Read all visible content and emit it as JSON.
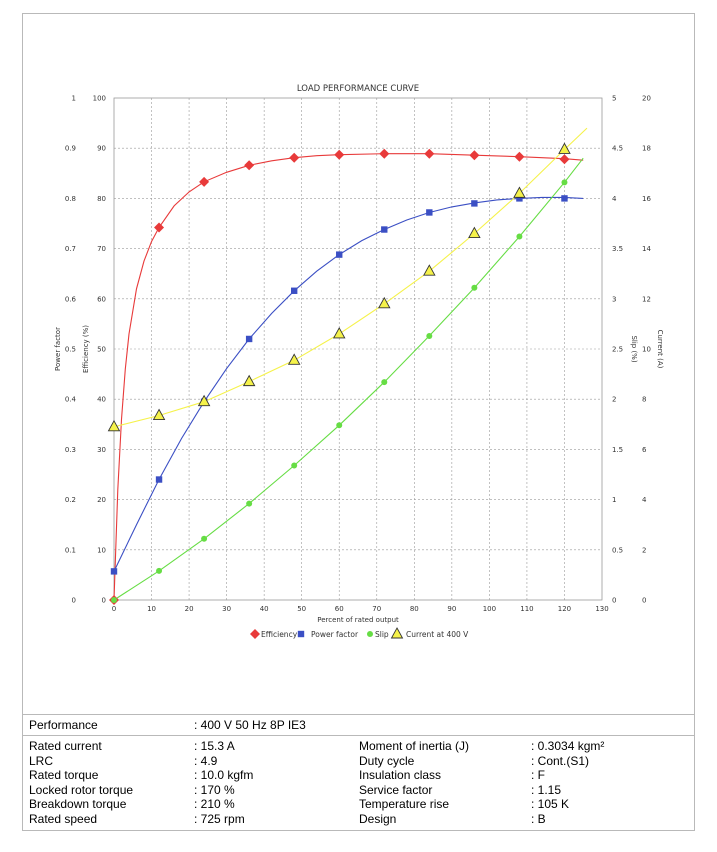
{
  "chart_data": {
    "type": "line",
    "title": "LOAD PERFORMANCE CURVE",
    "xlabel": "Percent of rated output",
    "xlim": [
      0,
      130
    ],
    "x_ticks": [
      "0",
      "10",
      "20",
      "30",
      "40",
      "50",
      "60",
      "70",
      "80",
      "90",
      "100",
      "110",
      "120",
      "130"
    ],
    "axes": [
      {
        "key": "pf",
        "label": "Power factor",
        "side": "left",
        "min": 0,
        "max": 1,
        "ticks": [
          "0",
          "0.1",
          "0.2",
          "0.3",
          "0.4",
          "0.5",
          "0.6",
          "0.7",
          "0.8",
          "0.9",
          "1"
        ]
      },
      {
        "key": "eff",
        "label": "Efficiency (%)",
        "side": "left",
        "min": 0,
        "max": 100,
        "ticks": [
          "0",
          "10",
          "20",
          "30",
          "40",
          "50",
          "60",
          "70",
          "80",
          "90",
          "100"
        ]
      },
      {
        "key": "slip",
        "label": "Slip (%)",
        "side": "right",
        "min": 0,
        "max": 5,
        "ticks": [
          "0",
          "0.5",
          "1",
          "1.5",
          "2",
          "2.5",
          "3",
          "3.5",
          "4",
          "4.5",
          "5"
        ]
      },
      {
        "key": "cur",
        "label": "Current (A)",
        "side": "right",
        "min": 0,
        "max": 20,
        "ticks": [
          "0",
          "2",
          "4",
          "6",
          "8",
          "10",
          "12",
          "14",
          "16",
          "18",
          "20"
        ]
      }
    ],
    "grid": true,
    "legend_position": "bottom",
    "series": [
      {
        "name": "Efficiency",
        "axis": "eff",
        "marker": "diamond",
        "color": "#e83a3a",
        "points": [
          [
            0,
            0
          ],
          [
            12,
            74.2
          ],
          [
            24,
            83.3
          ],
          [
            36,
            86.6
          ],
          [
            48,
            88.1
          ],
          [
            60,
            88.7
          ],
          [
            72,
            88.9
          ],
          [
            84,
            88.9
          ],
          [
            96,
            88.6
          ],
          [
            108,
            88.3
          ],
          [
            120,
            87.8
          ]
        ],
        "curve": [
          [
            0,
            0
          ],
          [
            1,
            22
          ],
          [
            2,
            36
          ],
          [
            3,
            46
          ],
          [
            4,
            53
          ],
          [
            6,
            62
          ],
          [
            8,
            67.5
          ],
          [
            10,
            71.4
          ],
          [
            12,
            74.2
          ],
          [
            16,
            78.5
          ],
          [
            20,
            81.3
          ],
          [
            24,
            83.3
          ],
          [
            30,
            85.2
          ],
          [
            36,
            86.6
          ],
          [
            42,
            87.5
          ],
          [
            48,
            88.1
          ],
          [
            54,
            88.5
          ],
          [
            60,
            88.7
          ],
          [
            72,
            88.9
          ],
          [
            84,
            88.9
          ],
          [
            96,
            88.6
          ],
          [
            108,
            88.3
          ],
          [
            120,
            87.9
          ],
          [
            125,
            87.6
          ]
        ]
      },
      {
        "name": "Power factor",
        "axis": "pf",
        "marker": "square",
        "color": "#3b4fc4",
        "points": [
          [
            0,
            0.057
          ],
          [
            12,
            0.24
          ],
          [
            24,
            0.395
          ],
          [
            36,
            0.52
          ],
          [
            48,
            0.616
          ],
          [
            60,
            0.688
          ],
          [
            72,
            0.738
          ],
          [
            84,
            0.772
          ],
          [
            96,
            0.79
          ],
          [
            108,
            0.8
          ],
          [
            120,
            0.8
          ]
        ],
        "curve": [
          [
            0,
            0.057
          ],
          [
            6,
            0.15
          ],
          [
            12,
            0.24
          ],
          [
            18,
            0.322
          ],
          [
            24,
            0.395
          ],
          [
            30,
            0.461
          ],
          [
            36,
            0.52
          ],
          [
            42,
            0.571
          ],
          [
            48,
            0.616
          ],
          [
            54,
            0.655
          ],
          [
            60,
            0.688
          ],
          [
            66,
            0.716
          ],
          [
            72,
            0.738
          ],
          [
            78,
            0.757
          ],
          [
            84,
            0.772
          ],
          [
            90,
            0.783
          ],
          [
            96,
            0.791
          ],
          [
            102,
            0.797
          ],
          [
            108,
            0.8
          ],
          [
            114,
            0.802
          ],
          [
            120,
            0.802
          ],
          [
            125,
            0.8
          ]
        ]
      },
      {
        "name": "Slip",
        "axis": "slip",
        "marker": "circle",
        "color": "#66dd44",
        "points": [
          [
            0,
            0
          ],
          [
            12,
            0.29
          ],
          [
            24,
            0.61
          ],
          [
            36,
            0.96
          ],
          [
            48,
            1.34
          ],
          [
            60,
            1.74
          ],
          [
            72,
            2.17
          ],
          [
            84,
            2.63
          ],
          [
            96,
            3.11
          ],
          [
            108,
            3.62
          ],
          [
            120,
            4.16
          ]
        ],
        "curve": [
          [
            0,
            0
          ],
          [
            12,
            0.29
          ],
          [
            24,
            0.61
          ],
          [
            36,
            0.96
          ],
          [
            48,
            1.34
          ],
          [
            60,
            1.74
          ],
          [
            72,
            2.17
          ],
          [
            84,
            2.63
          ],
          [
            96,
            3.11
          ],
          [
            108,
            3.62
          ],
          [
            120,
            4.16
          ],
          [
            125,
            4.4
          ]
        ]
      },
      {
        "name": "Current at 400 V",
        "axis": "cur",
        "marker": "triangle",
        "color": "#f5f24a",
        "points": [
          [
            0,
            6.9
          ],
          [
            12,
            7.35
          ],
          [
            24,
            7.9
          ],
          [
            36,
            8.7
          ],
          [
            48,
            9.55
          ],
          [
            60,
            10.6
          ],
          [
            72,
            11.8
          ],
          [
            84,
            13.1
          ],
          [
            96,
            14.6
          ],
          [
            108,
            16.2
          ],
          [
            120,
            17.95
          ]
        ],
        "curve": [
          [
            0,
            6.9
          ],
          [
            12,
            7.35
          ],
          [
            24,
            7.9
          ],
          [
            36,
            8.7
          ],
          [
            48,
            9.55
          ],
          [
            60,
            10.6
          ],
          [
            72,
            11.8
          ],
          [
            84,
            13.1
          ],
          [
            96,
            14.6
          ],
          [
            108,
            16.2
          ],
          [
            120,
            17.95
          ],
          [
            126,
            18.8
          ]
        ]
      }
    ]
  },
  "specs": {
    "performance": {
      "label": "Performance",
      "value": ": 400 V 50 Hz 8P IE3"
    },
    "rows": [
      {
        "left_label": "Rated current",
        "left_value": ": 15.3 A",
        "right_label": "Moment of inertia (J)",
        "right_value": ": 0.3034 kgm²"
      },
      {
        "left_label": "LRC",
        "left_value": ": 4.9",
        "right_label": "Duty cycle",
        "right_value": ": Cont.(S1)"
      },
      {
        "left_label": "Rated torque",
        "left_value": ": 10.0 kgfm",
        "right_label": "Insulation class",
        "right_value": ": F"
      },
      {
        "left_label": "Locked rotor torque",
        "left_value": ": 170 %",
        "right_label": "Service factor",
        "right_value": ": 1.15"
      },
      {
        "left_label": "Breakdown torque",
        "left_value": ": 210 %",
        "right_label": "Temperature rise",
        "right_value": ": 105 K"
      },
      {
        "left_label": "Rated speed",
        "left_value": ": 725 rpm",
        "right_label": "Design",
        "right_value": ": B"
      }
    ]
  }
}
